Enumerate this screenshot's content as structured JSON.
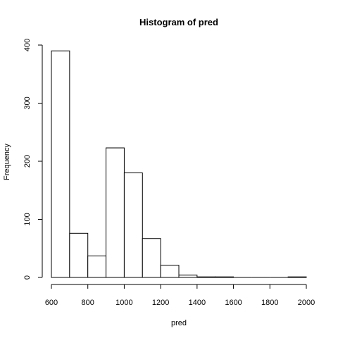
{
  "chart_data": {
    "type": "bar",
    "title": "Histogram of pred",
    "xlabel": "pred",
    "ylabel": "Frequency",
    "bin_edges": [
      600,
      700,
      800,
      900,
      1000,
      1100,
      1200,
      1300,
      1400,
      1500,
      1600,
      1700,
      1800,
      1900,
      2000
    ],
    "values": [
      390,
      76,
      37,
      223,
      180,
      67,
      21,
      4,
      1,
      1,
      0,
      0,
      0,
      1
    ],
    "xlim": [
      600,
      2000
    ],
    "ylim": [
      0,
      400
    ],
    "x_ticks": [
      600,
      800,
      1000,
      1200,
      1400,
      1600,
      1800,
      2000
    ],
    "y_ticks": [
      0,
      100,
      200,
      300,
      400
    ],
    "grid": false,
    "colors": {
      "bar_fill": "#ffffff",
      "bar_stroke": "#000000"
    }
  }
}
